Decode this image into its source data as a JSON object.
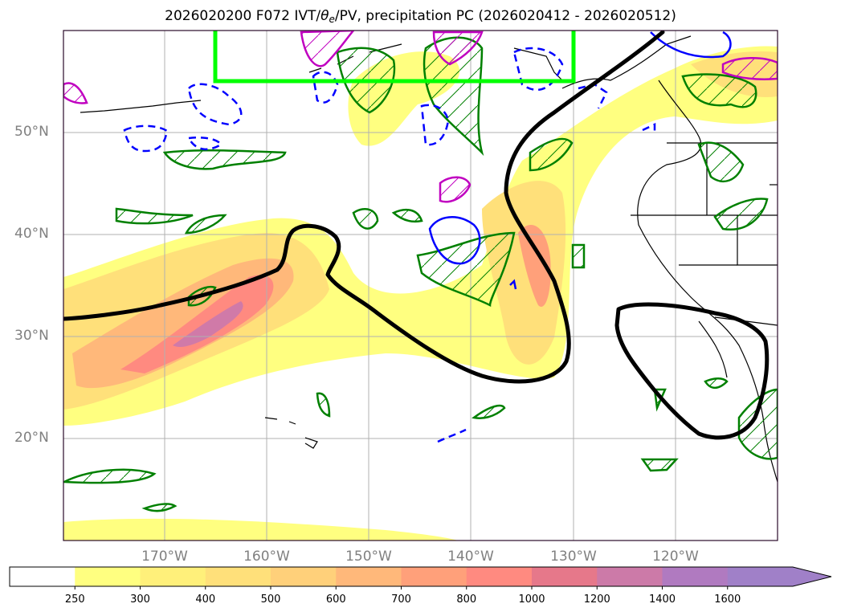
{
  "title": {
    "prefix": "2026020200 F072 IVT/",
    "theta": "θ",
    "theta_sub": "e",
    "suffix": "/PV, precipitation PC (2026020412 - 2026020512)"
  },
  "axes": {
    "lat_labels": [
      "50°N",
      "40°N",
      "30°N",
      "20°N"
    ],
    "lon_labels": [
      "170°W",
      "160°W",
      "150°W",
      "140°W",
      "130°W",
      "120°W"
    ]
  },
  "colorbar": {
    "ticks": [
      "250",
      "300",
      "400",
      "500",
      "600",
      "700",
      "800",
      "1000",
      "1200",
      "1400",
      "1600"
    ],
    "colors": [
      "#ffffff",
      "#ffff80",
      "#fff07a",
      "#ffe07a",
      "#ffd07a",
      "#ffb87a",
      "#ffa07a",
      "#ff8a80",
      "#e6788a",
      "#cc7aa8",
      "#b07ac0",
      "#a080c8"
    ],
    "extend": "max"
  },
  "map": {
    "frame_color": "#2a0a2a",
    "grid_color": "#b0b0b0",
    "coast_color": "#000000",
    "box_color": "#00ff00",
    "theta_color": "#000000",
    "precip_color": "#008000",
    "pv_pos_color": "#0000ff",
    "pv_mag_color": "#c000c0",
    "ivt_fill": "#ffff80"
  }
}
